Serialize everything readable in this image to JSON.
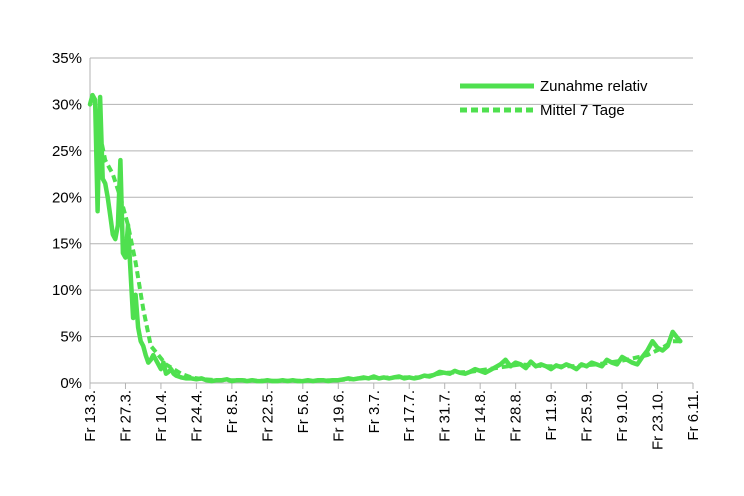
{
  "chart_data": {
    "type": "line",
    "title": "",
    "xlabel": "",
    "ylabel": "",
    "ylim": [
      0,
      35
    ],
    "yticks": [
      "0%",
      "5%",
      "10%",
      "15%",
      "20%",
      "25%",
      "30%",
      "35%"
    ],
    "yticks_values": [
      0,
      5,
      10,
      15,
      20,
      25,
      30,
      35
    ],
    "xticks": [
      "Fr 13.3.",
      "Fr 27.3.",
      "Fr 10.4.",
      "Fr 24.4.",
      "Fr 8.5.",
      "Fr 22.5.",
      "Fr 5.6.",
      "Fr 19.6.",
      "Fr 3.7.",
      "Fr 17.7.",
      "Fr 31.7.",
      "Fr 14.8.",
      "Fr 28.8.",
      "Fr 11.9.",
      "Fr 25.9.",
      "Fr 9.10.",
      "Fr 23.10.",
      "Fr 6.11."
    ],
    "grid": true,
    "legend_position": "top-right",
    "colors": {
      "series": "#4fe04f",
      "grid": "#b3b3b3",
      "axis": "#b3b3b3"
    },
    "x_day_range": [
      0,
      238
    ],
    "series": [
      {
        "name": "Zunahme relativ",
        "style": "solid",
        "points": [
          [
            0,
            30
          ],
          [
            1,
            31
          ],
          [
            2,
            30.5
          ],
          [
            3,
            18.5
          ],
          [
            4,
            30.8
          ],
          [
            5,
            22
          ],
          [
            6,
            21.5
          ],
          [
            7,
            20
          ],
          [
            8,
            18
          ],
          [
            9,
            16
          ],
          [
            10,
            15.5
          ],
          [
            11,
            17
          ],
          [
            12,
            24
          ],
          [
            13,
            14
          ],
          [
            14,
            13.5
          ],
          [
            15,
            17
          ],
          [
            16,
            12
          ],
          [
            17,
            7
          ],
          [
            18,
            9.5
          ],
          [
            19,
            6
          ],
          [
            20,
            4.5
          ],
          [
            21,
            4
          ],
          [
            22,
            3
          ],
          [
            23,
            2.2
          ],
          [
            24,
            2.5
          ],
          [
            25,
            3
          ],
          [
            26,
            2.5
          ],
          [
            27,
            2
          ],
          [
            28,
            1.5
          ],
          [
            29,
            2.2
          ],
          [
            30,
            1
          ],
          [
            31,
            1.2
          ],
          [
            32,
            1.5
          ],
          [
            33,
            1
          ],
          [
            34,
            0.8
          ],
          [
            35,
            0.7
          ],
          [
            36,
            0.6
          ],
          [
            38,
            0.5
          ],
          [
            40,
            0.5
          ],
          [
            42,
            0.4
          ],
          [
            44,
            0.5
          ],
          [
            46,
            0.3
          ],
          [
            48,
            0.2
          ],
          [
            50,
            0.3
          ],
          [
            52,
            0.3
          ],
          [
            54,
            0.4
          ],
          [
            56,
            0.2
          ],
          [
            58,
            0.3
          ],
          [
            60,
            0.3
          ],
          [
            62,
            0.2
          ],
          [
            64,
            0.3
          ],
          [
            66,
            0.2
          ],
          [
            68,
            0.2
          ],
          [
            70,
            0.3
          ],
          [
            72,
            0.2
          ],
          [
            74,
            0.2
          ],
          [
            76,
            0.3
          ],
          [
            78,
            0.2
          ],
          [
            80,
            0.3
          ],
          [
            82,
            0.2
          ],
          [
            84,
            0.2
          ],
          [
            86,
            0.3
          ],
          [
            88,
            0.2
          ],
          [
            90,
            0.3
          ],
          [
            92,
            0.3
          ],
          [
            94,
            0.2
          ],
          [
            96,
            0.3
          ],
          [
            98,
            0.3
          ],
          [
            100,
            0.4
          ],
          [
            102,
            0.5
          ],
          [
            104,
            0.4
          ],
          [
            106,
            0.5
          ],
          [
            108,
            0.6
          ],
          [
            110,
            0.5
          ],
          [
            112,
            0.7
          ],
          [
            114,
            0.5
          ],
          [
            116,
            0.6
          ],
          [
            118,
            0.5
          ],
          [
            120,
            0.6
          ],
          [
            122,
            0.7
          ],
          [
            124,
            0.5
          ],
          [
            126,
            0.6
          ],
          [
            128,
            0.5
          ],
          [
            130,
            0.6
          ],
          [
            132,
            0.8
          ],
          [
            134,
            0.7
          ],
          [
            136,
            0.9
          ],
          [
            138,
            1.2
          ],
          [
            140,
            1.1
          ],
          [
            142,
            1
          ],
          [
            144,
            1.3
          ],
          [
            146,
            1.1
          ],
          [
            148,
            1
          ],
          [
            150,
            1.2
          ],
          [
            152,
            1.5
          ],
          [
            154,
            1.3
          ],
          [
            156,
            1.1
          ],
          [
            158,
            1.4
          ],
          [
            160,
            1.7
          ],
          [
            162,
            2
          ],
          [
            164,
            2.5
          ],
          [
            166,
            1.8
          ],
          [
            168,
            2.2
          ],
          [
            170,
            2
          ],
          [
            172,
            1.6
          ],
          [
            174,
            2.3
          ],
          [
            176,
            1.8
          ],
          [
            178,
            2
          ],
          [
            180,
            1.8
          ],
          [
            182,
            1.5
          ],
          [
            184,
            1.9
          ],
          [
            186,
            1.7
          ],
          [
            188,
            2
          ],
          [
            190,
            1.8
          ],
          [
            192,
            1.5
          ],
          [
            194,
            2
          ],
          [
            196,
            1.8
          ],
          [
            198,
            2.2
          ],
          [
            200,
            2
          ],
          [
            202,
            1.8
          ],
          [
            204,
            2.5
          ],
          [
            206,
            2.2
          ],
          [
            208,
            2
          ],
          [
            210,
            2.8
          ],
          [
            212,
            2.5
          ],
          [
            214,
            2.2
          ],
          [
            216,
            2
          ],
          [
            218,
            2.8
          ],
          [
            220,
            3.5
          ],
          [
            222,
            4.5
          ],
          [
            224,
            3.8
          ],
          [
            226,
            3.5
          ],
          [
            228,
            4
          ],
          [
            230,
            5.5
          ],
          [
            232,
            4.8
          ],
          [
            233,
            4.5
          ]
        ]
      },
      {
        "name": "Mittel 7 Tage",
        "style": "dashed",
        "points": [
          [
            3,
            28
          ],
          [
            6,
            24
          ],
          [
            9,
            22.5
          ],
          [
            12,
            20
          ],
          [
            15,
            17
          ],
          [
            18,
            13
          ],
          [
            21,
            8
          ],
          [
            24,
            4
          ],
          [
            27,
            3
          ],
          [
            30,
            2
          ],
          [
            33,
            1.5
          ],
          [
            36,
            1
          ],
          [
            40,
            0.6
          ],
          [
            45,
            0.4
          ],
          [
            50,
            0.3
          ],
          [
            60,
            0.3
          ],
          [
            70,
            0.25
          ],
          [
            80,
            0.25
          ],
          [
            90,
            0.25
          ],
          [
            100,
            0.35
          ],
          [
            110,
            0.55
          ],
          [
            120,
            0.6
          ],
          [
            130,
            0.6
          ],
          [
            140,
            1.1
          ],
          [
            150,
            1.2
          ],
          [
            160,
            1.6
          ],
          [
            170,
            2
          ],
          [
            180,
            1.8
          ],
          [
            190,
            1.8
          ],
          [
            200,
            2
          ],
          [
            210,
            2.4
          ],
          [
            220,
            3
          ],
          [
            226,
            3.8
          ],
          [
            230,
            4.5
          ],
          [
            233,
            4.5
          ]
        ]
      }
    ]
  }
}
